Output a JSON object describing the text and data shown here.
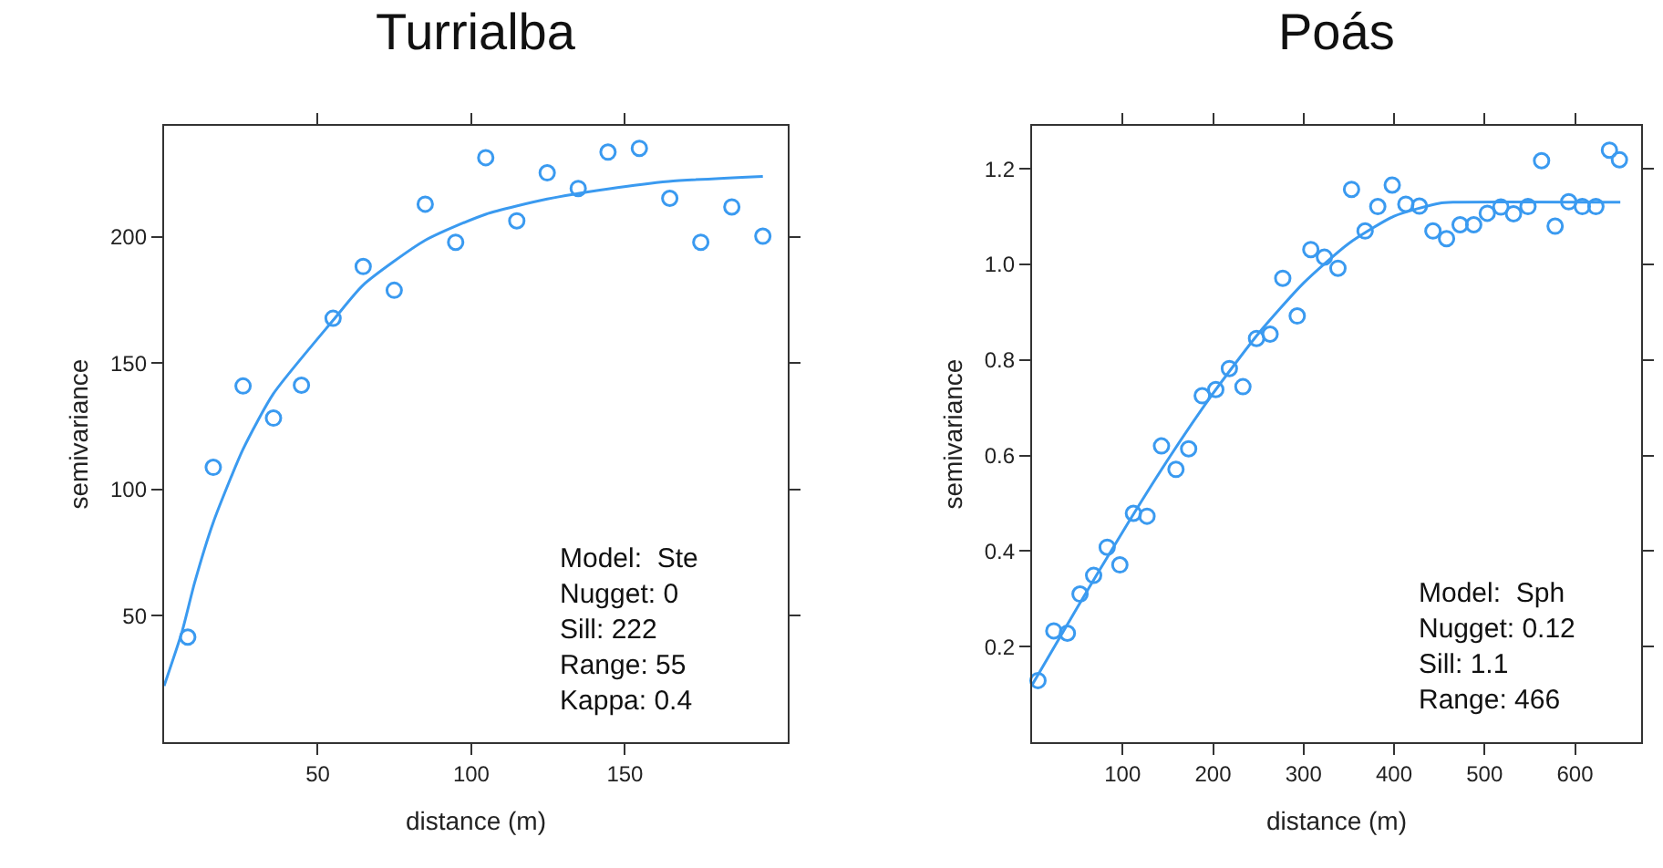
{
  "chart_data": [
    {
      "type": "scatter",
      "title": "Turrialba",
      "xlabel": "distance (m)",
      "ylabel": "semivariance",
      "xlim": [
        0,
        203
      ],
      "ylim": [
        0,
        244
      ],
      "xticks": [
        50,
        100,
        150
      ],
      "yticks": [
        50,
        100,
        150,
        200
      ],
      "annotations": [
        "Model:  Ste",
        "Nugget: 0",
        "Sill: 222",
        "Range: 55",
        "Kappa: 0.4"
      ],
      "series": [
        {
          "marker": "circle",
          "color": "#3a9af0",
          "x": [
            7.7,
            16,
            25.7,
            35.6,
            44.7,
            55,
            64.8,
            74.9,
            85,
            94.9,
            104.7,
            114.8,
            124.7,
            134.8,
            144.5,
            154.7,
            164.6,
            174.7,
            184.8,
            194.9
          ],
          "values": [
            41.6,
            108.8,
            141,
            128.3,
            141.3,
            167.8,
            188.3,
            178.9,
            213,
            197.9,
            231.4,
            206.4,
            225.4,
            219.2,
            233.6,
            235.1,
            215.3,
            197.9,
            211.9,
            200.3
          ]
        },
        {
          "type": "line",
          "marker": "none",
          "color": "#3a9af0",
          "x": [
            0,
            5.9,
            9.9,
            16,
            25.7,
            35.6,
            55,
            64.8,
            85,
            104.7,
            124.7,
            144.5,
            164.2,
            194.9
          ],
          "values": [
            22.3,
            44,
            63,
            87,
            116,
            138,
            167,
            181,
            198.7,
            209,
            215,
            219,
            222,
            224
          ]
        }
      ]
    },
    {
      "type": "scatter",
      "title": "Poás",
      "xlabel": "distance (m)",
      "ylabel": "semivariance",
      "xlim": [
        0,
        673
      ],
      "ylim": [
        0,
        1.29
      ],
      "xticks": [
        100,
        200,
        300,
        400,
        500,
        600
      ],
      "yticks": [
        {
          "value": 0.2,
          "label": "0.2"
        },
        {
          "value": 0.4,
          "label": "0.4"
        },
        {
          "value": 0.6,
          "label": "0.6"
        },
        {
          "value": 0.8,
          "label": "0.8"
        },
        {
          "value": 1.0,
          "label": "1.0"
        },
        {
          "value": 1.2,
          "label": "1.2"
        }
      ],
      "annotations": [
        "Model:  Sph",
        "Nugget: 0.12",
        "Sill: 1.1",
        "Range: 466"
      ],
      "series": [
        {
          "marker": "circle",
          "color": "#3a9af0",
          "x": [
            6.5,
            24,
            39,
            53,
            68,
            83,
            97,
            112,
            127,
            143,
            159,
            173,
            188,
            203,
            218,
            233,
            248,
            263,
            277,
            293,
            308,
            323,
            338,
            353,
            368,
            382,
            398,
            413,
            428,
            443,
            458,
            473,
            488,
            503,
            518,
            532,
            548,
            563,
            578,
            593,
            608,
            623,
            638,
            649
          ],
          "values": [
            0.129,
            0.233,
            0.228,
            0.31,
            0.349,
            0.408,
            0.371,
            0.479,
            0.473,
            0.62,
            0.571,
            0.614,
            0.725,
            0.738,
            0.782,
            0.744,
            0.845,
            0.854,
            0.971,
            0.892,
            1.031,
            1.015,
            0.992,
            1.157,
            1.07,
            1.121,
            1.166,
            1.126,
            1.122,
            1.07,
            1.054,
            1.083,
            1.083,
            1.107,
            1.12,
            1.106,
            1.121,
            1.217,
            1.08,
            1.131,
            1.121,
            1.121,
            1.239,
            1.219
          ]
        },
        {
          "type": "line",
          "marker": "none",
          "color": "#3a9af0",
          "x": [
            0,
            50,
            100,
            150,
            200,
            250,
            300,
            350,
            400,
            450,
            466,
            650
          ],
          "values": [
            0.12,
            0.282,
            0.44,
            0.591,
            0.73,
            0.855,
            0.961,
            1.044,
            1.101,
            1.128,
            1.13,
            1.13
          ]
        }
      ]
    }
  ]
}
